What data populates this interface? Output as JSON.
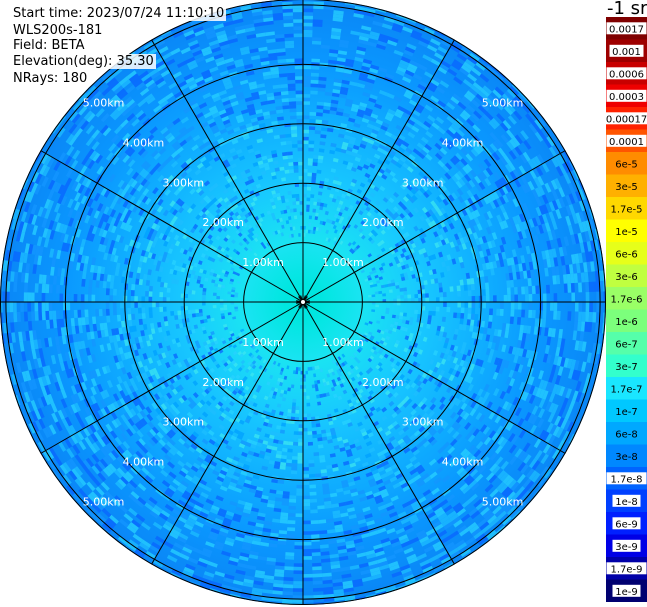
{
  "info": {
    "start_time": "Start time: 2023/07/24 11:10:10",
    "instrument": "WLS200s-181",
    "field": "Field: BETA",
    "elevation": "Elevation(deg): 35.30",
    "nrays": "NRays: 180"
  },
  "colorbar": {
    "units_label": "-1 sr",
    "labels": [
      "0.0017",
      "0.001",
      "0.0006",
      "0.0003",
      "0.00017",
      "0.0001",
      "6e-5",
      "3e-5",
      "1.7e-5",
      "1e-5",
      "6e-6",
      "3e-6",
      "1.7e-6",
      "1e-6",
      "6e-7",
      "3e-7",
      "1.7e-7",
      "1e-7",
      "6e-8",
      "3e-8",
      "1.7e-8",
      "1e-8",
      "6e-9",
      "3e-9",
      "1.7e-9",
      "1e-9"
    ],
    "colors": [
      "#7f0000",
      "#9e0000",
      "#c80000",
      "#ee0000",
      "#ff2200",
      "#ff5500",
      "#ff8c00",
      "#ffb000",
      "#ffd800",
      "#ffff00",
      "#e6ff1a",
      "#c0ff40",
      "#9aff66",
      "#7cff7c",
      "#55ffaa",
      "#33ffcc",
      "#1ae6ff",
      "#00c8ff",
      "#00a8ff",
      "#0088ff",
      "#0064ff",
      "#0040ff",
      "#0020ff",
      "#0000e6",
      "#0000a8",
      "#000070"
    ]
  },
  "chart_data": {
    "type": "heatmap",
    "projection": "polar (PPI scan)",
    "field": "BETA",
    "rays": 180,
    "range_rings_km": [
      1,
      2,
      3,
      4,
      5
    ],
    "range_ring_labels": [
      "1.00km",
      "2.00km",
      "3.00km",
      "4.00km",
      "5.00km"
    ],
    "azimuth_spokes_deg": [
      0,
      30,
      60,
      90,
      120,
      150,
      180,
      210,
      240,
      270,
      300,
      330
    ],
    "max_range_km": 5.1,
    "radial_profile": [
      {
        "range_km": 0.3,
        "color": "#00e6e0"
      },
      {
        "range_km": 1.0,
        "color": "#1ae4f2"
      },
      {
        "range_km": 2.0,
        "color": "#18c8ff"
      },
      {
        "range_km": 3.0,
        "color": "#10b0ff"
      },
      {
        "range_km": 4.0,
        "color": "#0a98ff"
      },
      {
        "range_km": 5.1,
        "color": "#0a86f6"
      }
    ]
  }
}
